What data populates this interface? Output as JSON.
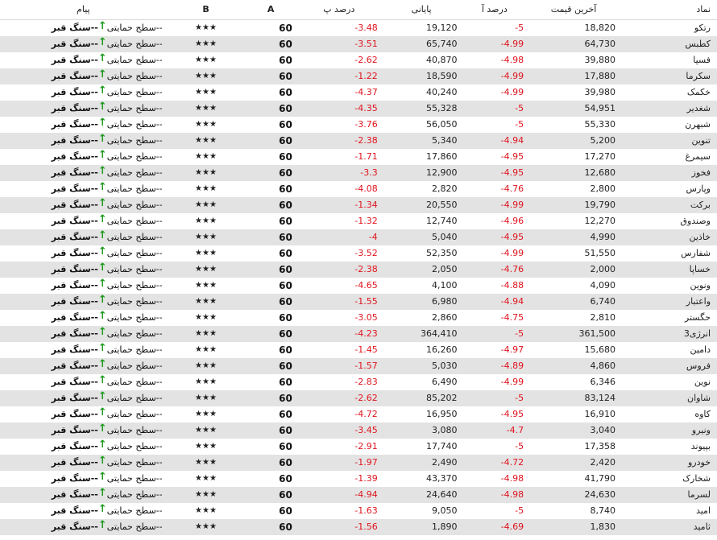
{
  "headers": {
    "message": "پیام",
    "b": "B",
    "a": "A",
    "pct_close": "درصد پ",
    "close": "پایانی",
    "pct_last": "درصد آ",
    "last": "آخرین قیمت",
    "symbol": "نماد"
  },
  "message_parts": {
    "strong": "سنگ قبر",
    "dashes_mid": "--",
    "normal": "سطح حمایتی",
    "dashes_end": "--",
    "arrow_icon": "up-arrow-icon",
    "arrow_color": "#1c9a1c"
  },
  "colors": {
    "negative": "#e0141e",
    "row_alt": "#e3e3e3"
  },
  "rows": [
    {
      "symbol": "رتکو",
      "last": "18,820",
      "pct_last": "-5",
      "close": "19,120",
      "pct_close": "-3.48",
      "a": "60",
      "b": "★★★"
    },
    {
      "symbol": "کطبس",
      "last": "64,730",
      "pct_last": "-4.99",
      "close": "65,740",
      "pct_close": "-3.51",
      "a": "60",
      "b": "★★★"
    },
    {
      "symbol": "فسپا",
      "last": "39,880",
      "pct_last": "-4.98",
      "close": "40,870",
      "pct_close": "-2.62",
      "a": "60",
      "b": "★★★"
    },
    {
      "symbol": "سکرما",
      "last": "17,880",
      "pct_last": "-4.99",
      "close": "18,590",
      "pct_close": "-1.22",
      "a": "60",
      "b": "★★★"
    },
    {
      "symbol": "خکمک",
      "last": "39,980",
      "pct_last": "-4.99",
      "close": "40,240",
      "pct_close": "-4.37",
      "a": "60",
      "b": "★★★"
    },
    {
      "symbol": "شغدیر",
      "last": "54,951",
      "pct_last": "-5",
      "close": "55,328",
      "pct_close": "-4.35",
      "a": "60",
      "b": "★★★"
    },
    {
      "symbol": "شبهرن",
      "last": "55,330",
      "pct_last": "-5",
      "close": "56,050",
      "pct_close": "-3.76",
      "a": "60",
      "b": "★★★"
    },
    {
      "symbol": "تنوین",
      "last": "5,200",
      "pct_last": "-4.94",
      "close": "5,340",
      "pct_close": "-2.38",
      "a": "60",
      "b": "★★★"
    },
    {
      "symbol": "سیمرغ",
      "last": "17,270",
      "pct_last": "-4.95",
      "close": "17,860",
      "pct_close": "-1.71",
      "a": "60",
      "b": "★★★"
    },
    {
      "symbol": "فخوز",
      "last": "12,680",
      "pct_last": "-4.95",
      "close": "12,900",
      "pct_close": "-3.3",
      "a": "60",
      "b": "★★★"
    },
    {
      "symbol": "وپارس",
      "last": "2,800",
      "pct_last": "-4.76",
      "close": "2,820",
      "pct_close": "-4.08",
      "a": "60",
      "b": "★★★"
    },
    {
      "symbol": "برکت",
      "last": "19,790",
      "pct_last": "-4.99",
      "close": "20,550",
      "pct_close": "-1.34",
      "a": "60",
      "b": "★★★"
    },
    {
      "symbol": "وصندوق",
      "last": "12,270",
      "pct_last": "-4.96",
      "close": "12,740",
      "pct_close": "-1.32",
      "a": "60",
      "b": "★★★"
    },
    {
      "symbol": "خاذین",
      "last": "4,990",
      "pct_last": "-4.95",
      "close": "5,040",
      "pct_close": "-4",
      "a": "60",
      "b": "★★★"
    },
    {
      "symbol": "شفارس",
      "last": "51,550",
      "pct_last": "-4.99",
      "close": "52,350",
      "pct_close": "-3.52",
      "a": "60",
      "b": "★★★"
    },
    {
      "symbol": "خساپا",
      "last": "2,000",
      "pct_last": "-4.76",
      "close": "2,050",
      "pct_close": "-2.38",
      "a": "60",
      "b": "★★★"
    },
    {
      "symbol": "ونوین",
      "last": "4,090",
      "pct_last": "-4.88",
      "close": "4,100",
      "pct_close": "-4.65",
      "a": "60",
      "b": "★★★"
    },
    {
      "symbol": "واعتبار",
      "last": "6,740",
      "pct_last": "-4.94",
      "close": "6,980",
      "pct_close": "-1.55",
      "a": "60",
      "b": "★★★"
    },
    {
      "symbol": "حگستر",
      "last": "2,810",
      "pct_last": "-4.75",
      "close": "2,860",
      "pct_close": "-3.05",
      "a": "60",
      "b": "★★★"
    },
    {
      "symbol": "انرژی3",
      "last": "361,500",
      "pct_last": "-5",
      "close": "364,410",
      "pct_close": "-4.23",
      "a": "60",
      "b": "★★★"
    },
    {
      "symbol": "دامین",
      "last": "15,680",
      "pct_last": "-4.97",
      "close": "16,260",
      "pct_close": "-1.45",
      "a": "60",
      "b": "★★★"
    },
    {
      "symbol": "فروس",
      "last": "4,860",
      "pct_last": "-4.89",
      "close": "5,030",
      "pct_close": "-1.57",
      "a": "60",
      "b": "★★★"
    },
    {
      "symbol": "نوین",
      "last": "6,346",
      "pct_last": "-4.99",
      "close": "6,490",
      "pct_close": "-2.83",
      "a": "60",
      "b": "★★★"
    },
    {
      "symbol": "شاوان",
      "last": "83,124",
      "pct_last": "-5",
      "close": "85,202",
      "pct_close": "-2.62",
      "a": "60",
      "b": "★★★"
    },
    {
      "symbol": "کاوه",
      "last": "16,910",
      "pct_last": "-4.95",
      "close": "16,950",
      "pct_close": "-4.72",
      "a": "60",
      "b": "★★★"
    },
    {
      "symbol": "ونیرو",
      "last": "3,040",
      "pct_last": "-4.7",
      "close": "3,080",
      "pct_close": "-3.45",
      "a": "60",
      "b": "★★★"
    },
    {
      "symbol": "بپیوند",
      "last": "17,358",
      "pct_last": "-5",
      "close": "17,740",
      "pct_close": "-2.91",
      "a": "60",
      "b": "★★★"
    },
    {
      "symbol": "خودرو",
      "last": "2,420",
      "pct_last": "-4.72",
      "close": "2,490",
      "pct_close": "-1.97",
      "a": "60",
      "b": "★★★"
    },
    {
      "symbol": "شخارک",
      "last": "41,790",
      "pct_last": "-4.98",
      "close": "43,370",
      "pct_close": "-1.39",
      "a": "60",
      "b": "★★★"
    },
    {
      "symbol": "لسرما",
      "last": "24,630",
      "pct_last": "-4.98",
      "close": "24,640",
      "pct_close": "-4.94",
      "a": "60",
      "b": "★★★"
    },
    {
      "symbol": "امید",
      "last": "8,740",
      "pct_last": "-5",
      "close": "9,050",
      "pct_close": "-1.63",
      "a": "60",
      "b": "★★★"
    },
    {
      "symbol": "ثامید",
      "last": "1,830",
      "pct_last": "-4.69",
      "close": "1,890",
      "pct_close": "-1.56",
      "a": "60",
      "b": "★★★"
    }
  ]
}
